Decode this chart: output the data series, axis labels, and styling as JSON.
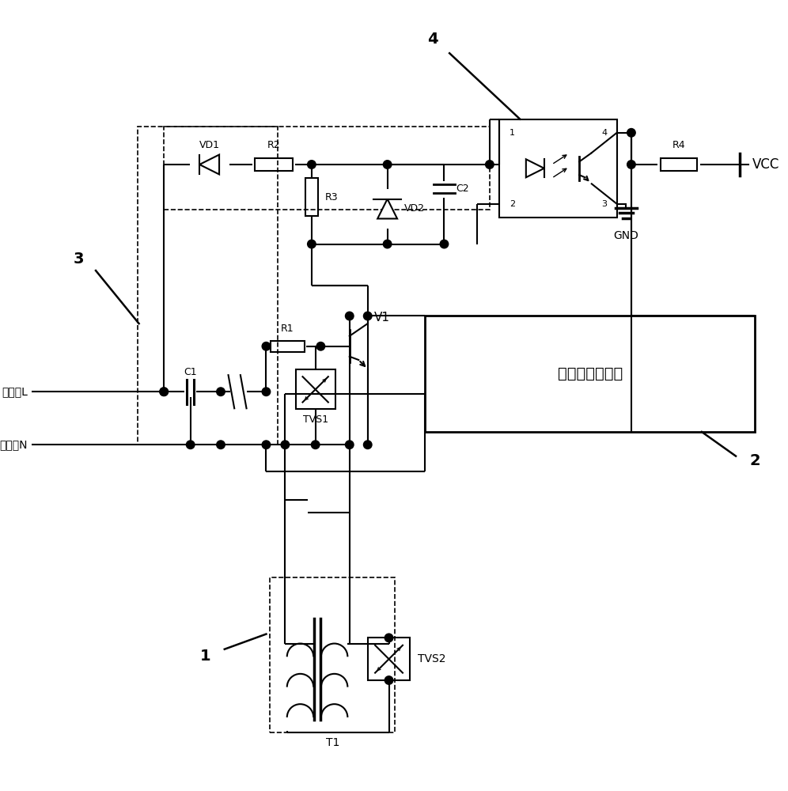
{
  "bg_color": "#ffffff",
  "line_color": "#000000",
  "fig_width": 9.96,
  "fig_height": 10.0,
  "labels": {
    "label1": "1",
    "label2": "2",
    "label3": "3",
    "label4": "4",
    "vd1": "VD1",
    "r2": "R2",
    "r3": "R3",
    "vd2": "VD2",
    "c2": "C2",
    "r4": "R4",
    "vcc": "VCC",
    "gnd": "GND",
    "c1": "C1",
    "r1": "R1",
    "tvs1": "TVS1",
    "tvs2": "TVS2",
    "t1": "T1",
    "v1": "V1",
    "elec_L": "电力线L",
    "elec_N": "电力线N",
    "plc_module": "电力线载波模块",
    "pin1": "1",
    "pin2": "2",
    "pin3": "3",
    "pin4": "4"
  }
}
